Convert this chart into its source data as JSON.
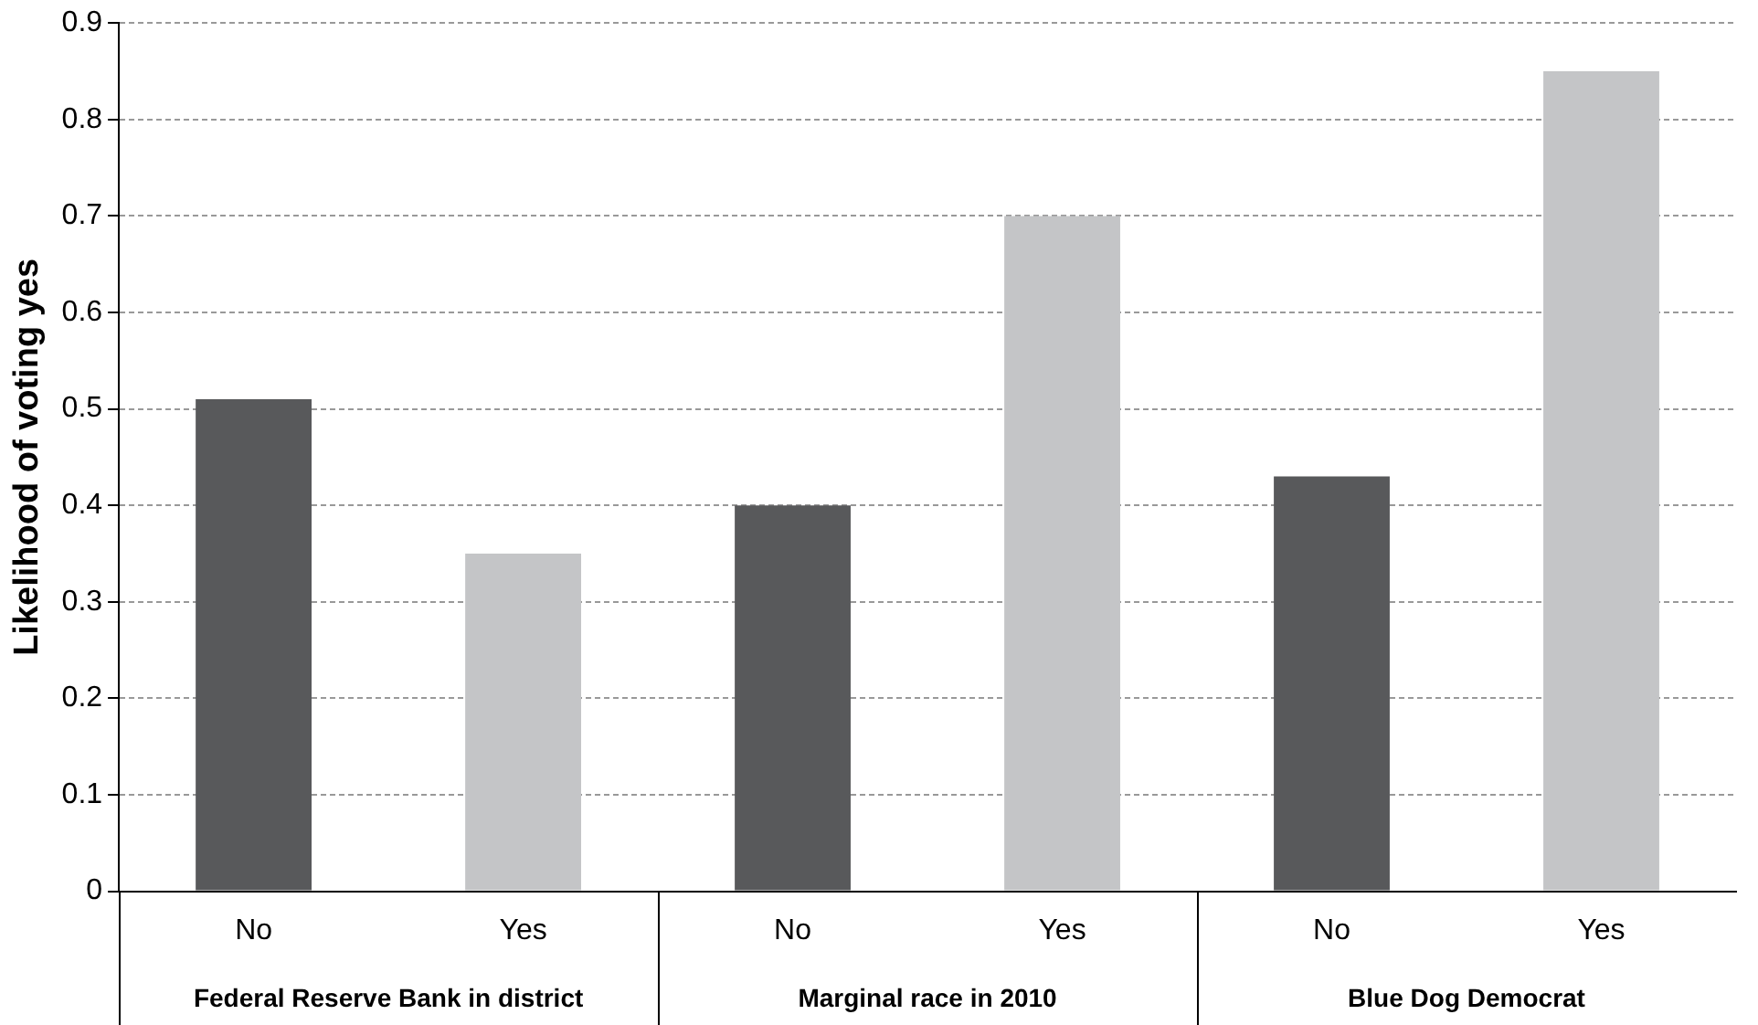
{
  "chart_data": {
    "type": "bar",
    "ylabel": "Likelihood of voting yes",
    "categories": [
      "No",
      "Yes",
      "No",
      "Yes",
      "No",
      "Yes"
    ],
    "values": [
      0.51,
      0.35,
      0.4,
      0.7,
      0.43,
      0.85
    ],
    "colors": [
      "#58595b",
      "#c4c5c7",
      "#58595b",
      "#c4c5c7",
      "#58595b",
      "#c4c5c7"
    ],
    "ylim": [
      0,
      0.9
    ],
    "yticks": [
      0,
      0.1,
      0.2,
      0.3,
      0.4,
      0.5,
      0.6,
      0.7,
      0.8,
      0.9
    ],
    "grid": "y",
    "legend": false,
    "annotations": [
      "Federal Reserve Bank in district",
      "Marginal race in 2010",
      "Blue Dog Democrat"
    ]
  }
}
